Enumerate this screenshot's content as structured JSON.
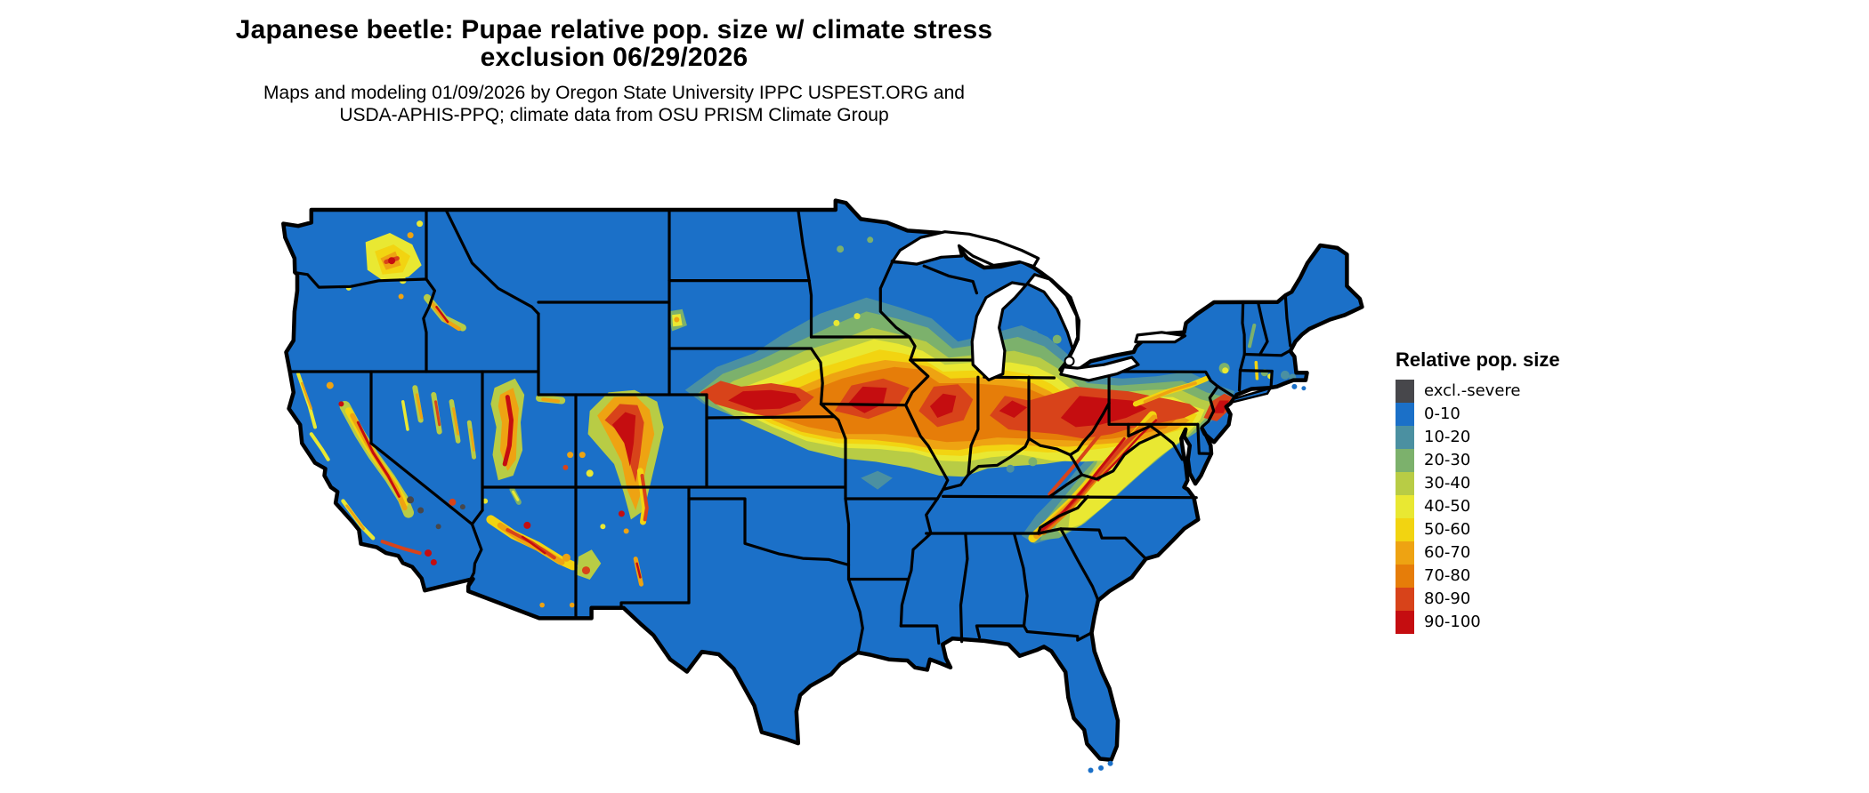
{
  "title": {
    "line1": "Japanese beetle: Pupae relative pop. size w/ climate stress",
    "line2": "exclusion 06/29/2026"
  },
  "subtitle": {
    "line1": "Maps and modeling 01/09/2026 by Oregon State University IPPC USPEST.ORG and",
    "line2": "USDA-APHIS-PPQ; climate data from OSU PRISM Climate Group"
  },
  "map": {
    "region": "Contiguous United States",
    "base_color": "#1b70c8",
    "border_color": "#000000",
    "water_color": "#ffffff"
  },
  "legend": {
    "title": "Relative pop. size",
    "items": [
      {
        "label": "excl.-severe",
        "color": "#47474b"
      },
      {
        "label": "0-10",
        "color": "#1b70c8"
      },
      {
        "label": "10-20",
        "color": "#4b90a1"
      },
      {
        "label": "20-30",
        "color": "#7cb16c"
      },
      {
        "label": "30-40",
        "color": "#b8cc45"
      },
      {
        "label": "40-50",
        "color": "#e9e832"
      },
      {
        "label": "50-60",
        "color": "#f2d411"
      },
      {
        "label": "60-70",
        "color": "#eea312"
      },
      {
        "label": "70-80",
        "color": "#e67d09"
      },
      {
        "label": "80-90",
        "color": "#d8431a"
      },
      {
        "label": "90-100",
        "color": "#c50d10"
      }
    ]
  }
}
